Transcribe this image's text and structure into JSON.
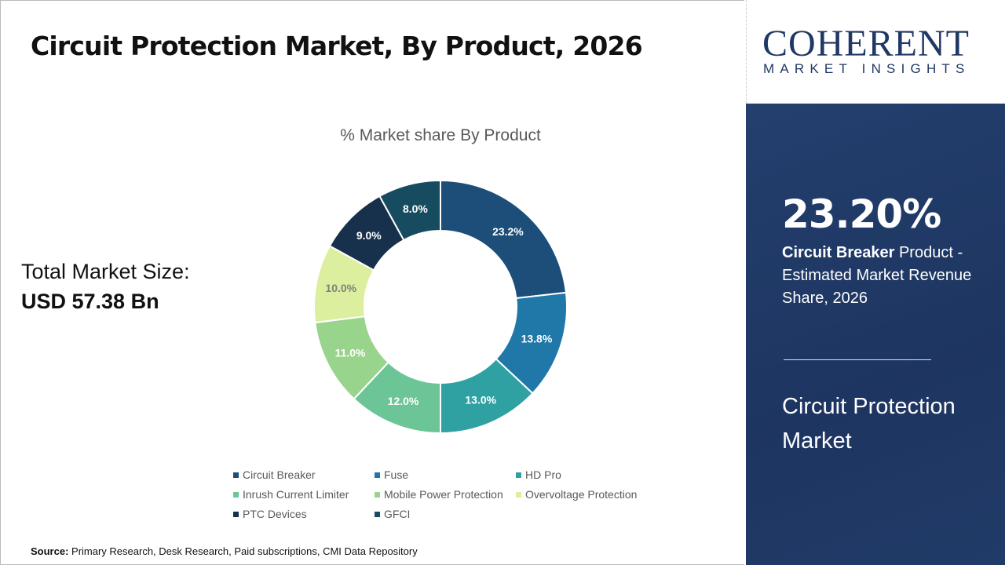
{
  "title": "Circuit Protection Market, By Product, 2026",
  "total": {
    "label": "Total Market Size:",
    "value": "USD 57.38 Bn"
  },
  "source": {
    "label": "Source:",
    "text": " Primary Research, Desk Research, Paid subscriptions, CMI Data Repository"
  },
  "logo": {
    "line1": "COHERENT",
    "line2": "MARKET INSIGHTS"
  },
  "panel": {
    "percent": "23.20%",
    "bold": "Circuit Breaker",
    "desc": " Product - Estimated Market Revenue Share, 2026",
    "market": "Circuit Protection Market"
  },
  "chart_data": {
    "type": "pie",
    "donut": true,
    "title": "% Market share By Product",
    "legend_position": "bottom",
    "categories": [
      "Circuit Breaker",
      "Fuse",
      "HD Pro",
      "Inrush Current Limiter",
      "Mobile Power Protection",
      "Overvoltage Protection",
      "PTC Devices",
      "GFCI"
    ],
    "values": [
      23.2,
      13.8,
      13.0,
      12.0,
      11.0,
      10.0,
      9.0,
      8.0
    ],
    "labels": [
      "23.2%",
      "13.8%",
      "13.0%",
      "12.0%",
      "11.0%",
      "10.0%",
      "9.0%",
      "8.0%"
    ],
    "colors": [
      "#1d4e79",
      "#1f78a8",
      "#2fa1a3",
      "#6cc596",
      "#99d48c",
      "#dbef9e",
      "#17304c",
      "#174b60"
    ]
  }
}
